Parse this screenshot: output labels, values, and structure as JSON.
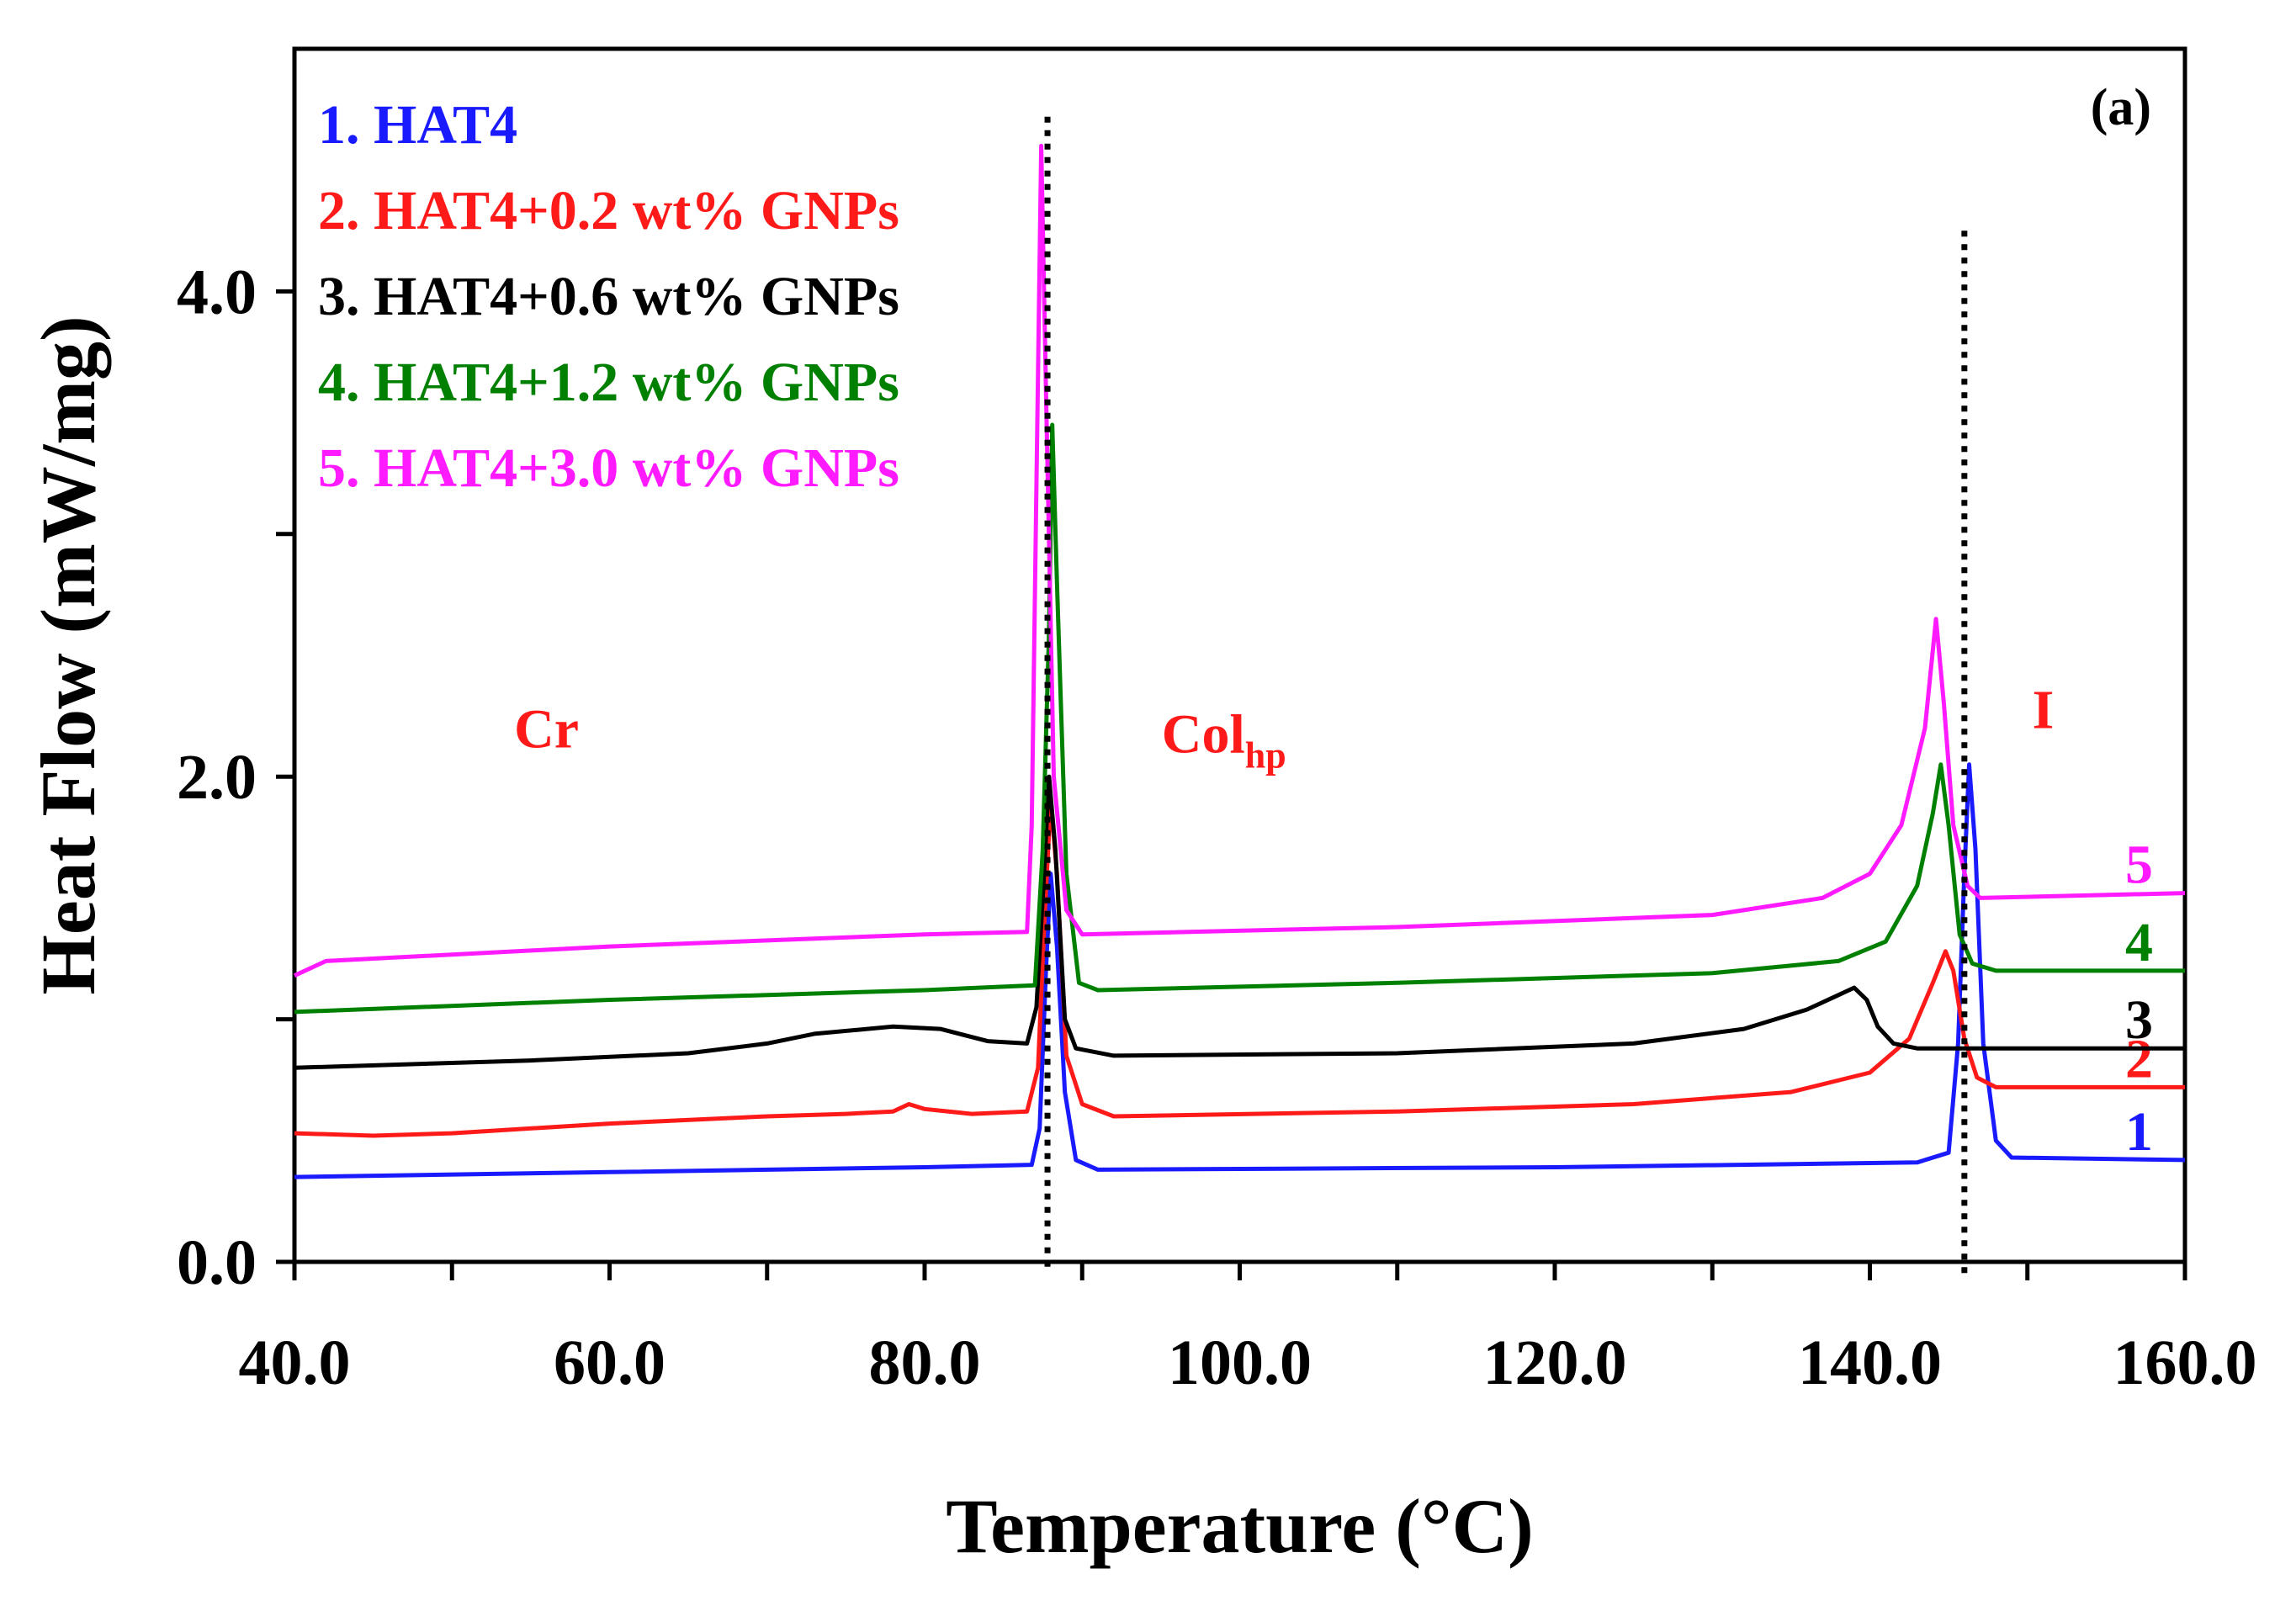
{
  "chart_data": {
    "type": "line",
    "title": "",
    "panel_label": "(a)",
    "xlabel": "Temperature (°C)",
    "ylabel": "Heat Flow (mW/mg)",
    "xlim": [
      40,
      160
    ],
    "ylim": [
      0,
      5.0
    ],
    "x_ticks": [
      40,
      60,
      80,
      100,
      120,
      140,
      160
    ],
    "x_tick_labels": [
      "40.0",
      "60.0",
      "80.0",
      "100.0",
      "120.0",
      "140.0",
      "160.0"
    ],
    "y_ticks": [
      0,
      2,
      4
    ],
    "y_tick_labels": [
      "0.0",
      "2.0",
      "4.0"
    ],
    "x_minor_step": 10,
    "y_minor_step": 1,
    "legend_position": "top-left",
    "series": [
      {
        "name": "1. HAT4",
        "end_label": "1",
        "color": "#1a1aff",
        "points": [
          [
            40,
            0.35
          ],
          [
            60,
            0.37
          ],
          [
            80,
            0.39
          ],
          [
            86.8,
            0.4
          ],
          [
            87.3,
            0.55
          ],
          [
            87.7,
            1.2
          ],
          [
            88.0,
            1.6
          ],
          [
            88.4,
            1.3
          ],
          [
            88.9,
            0.7
          ],
          [
            89.6,
            0.42
          ],
          [
            91,
            0.38
          ],
          [
            120,
            0.39
          ],
          [
            143,
            0.41
          ],
          [
            145.0,
            0.45
          ],
          [
            145.6,
            0.9
          ],
          [
            146.0,
            1.6
          ],
          [
            146.3,
            2.05
          ],
          [
            146.7,
            1.7
          ],
          [
            147.2,
            0.9
          ],
          [
            148.0,
            0.5
          ],
          [
            149,
            0.43
          ],
          [
            160,
            0.42
          ]
        ]
      },
      {
        "name": "2. HAT4+0.2 wt% GNPs",
        "end_label": "2",
        "color": "#ff1a1a",
        "points": [
          [
            40,
            0.53
          ],
          [
            45,
            0.52
          ],
          [
            50,
            0.53
          ],
          [
            60,
            0.57
          ],
          [
            70,
            0.6
          ],
          [
            75,
            0.61
          ],
          [
            78,
            0.62
          ],
          [
            79,
            0.65
          ],
          [
            80,
            0.63
          ],
          [
            83,
            0.61
          ],
          [
            86.5,
            0.62
          ],
          [
            87.2,
            0.8
          ],
          [
            87.6,
            1.4
          ],
          [
            88.0,
            1.9
          ],
          [
            88.4,
            1.6
          ],
          [
            89.0,
            0.85
          ],
          [
            90,
            0.65
          ],
          [
            92,
            0.6
          ],
          [
            110,
            0.62
          ],
          [
            125,
            0.65
          ],
          [
            135,
            0.7
          ],
          [
            140,
            0.78
          ],
          [
            142.5,
            0.92
          ],
          [
            144,
            1.15
          ],
          [
            144.8,
            1.28
          ],
          [
            145.3,
            1.2
          ],
          [
            146,
            0.92
          ],
          [
            146.8,
            0.76
          ],
          [
            148,
            0.72
          ],
          [
            160,
            0.72
          ]
        ]
      },
      {
        "name": "3. HAT4+0.6 wt% GNPs",
        "end_label": "3",
        "color": "#000000",
        "points": [
          [
            40,
            0.8
          ],
          [
            55,
            0.83
          ],
          [
            65,
            0.86
          ],
          [
            70,
            0.9
          ],
          [
            73,
            0.94
          ],
          [
            78,
            0.97
          ],
          [
            81,
            0.96
          ],
          [
            84,
            0.91
          ],
          [
            86.5,
            0.9
          ],
          [
            87.1,
            1.05
          ],
          [
            87.5,
            1.5
          ],
          [
            87.9,
            2.0
          ],
          [
            88.3,
            1.7
          ],
          [
            88.9,
            1.0
          ],
          [
            89.6,
            0.88
          ],
          [
            92,
            0.85
          ],
          [
            110,
            0.86
          ],
          [
            125,
            0.9
          ],
          [
            132,
            0.96
          ],
          [
            136,
            1.04
          ],
          [
            138,
            1.1
          ],
          [
            139,
            1.13
          ],
          [
            139.8,
            1.08
          ],
          [
            140.5,
            0.97
          ],
          [
            141.5,
            0.9
          ],
          [
            143,
            0.88
          ],
          [
            160,
            0.88
          ]
        ]
      },
      {
        "name": "4. HAT4+1.2 wt% GNPs",
        "end_label": "4",
        "color": "#008000",
        "points": [
          [
            40,
            1.03
          ],
          [
            60,
            1.08
          ],
          [
            80,
            1.12
          ],
          [
            87.0,
            1.14
          ],
          [
            87.5,
            1.7
          ],
          [
            87.9,
            2.6
          ],
          [
            88.1,
            3.45
          ],
          [
            88.4,
            2.8
          ],
          [
            89.0,
            1.6
          ],
          [
            89.8,
            1.15
          ],
          [
            91,
            1.12
          ],
          [
            110,
            1.15
          ],
          [
            130,
            1.19
          ],
          [
            138,
            1.24
          ],
          [
            141,
            1.32
          ],
          [
            143,
            1.55
          ],
          [
            144.0,
            1.85
          ],
          [
            144.5,
            2.05
          ],
          [
            145.0,
            1.8
          ],
          [
            145.7,
            1.35
          ],
          [
            146.5,
            1.23
          ],
          [
            148,
            1.2
          ],
          [
            160,
            1.2
          ]
        ]
      },
      {
        "name": "5. HAT4+3.0 wt% GNPs",
        "end_label": "5",
        "color": "#ff1aff",
        "points": [
          [
            40,
            1.18
          ],
          [
            42,
            1.24
          ],
          [
            60,
            1.3
          ],
          [
            80,
            1.35
          ],
          [
            86.5,
            1.36
          ],
          [
            86.8,
            1.8
          ],
          [
            87.1,
            3.2
          ],
          [
            87.4,
            4.6
          ],
          [
            87.7,
            3.6
          ],
          [
            88.2,
            2.0
          ],
          [
            89,
            1.45
          ],
          [
            90,
            1.35
          ],
          [
            110,
            1.38
          ],
          [
            130,
            1.43
          ],
          [
            137,
            1.5
          ],
          [
            140,
            1.6
          ],
          [
            142,
            1.8
          ],
          [
            143.5,
            2.2
          ],
          [
            144.2,
            2.65
          ],
          [
            144.7,
            2.3
          ],
          [
            145.3,
            1.8
          ],
          [
            146.2,
            1.55
          ],
          [
            147,
            1.5
          ],
          [
            160,
            1.52
          ]
        ]
      }
    ],
    "vlines": [
      {
        "x": 87.8,
        "y_from": -0.05,
        "y_to": 4.72
      },
      {
        "x": 146.0,
        "y_from": -0.05,
        "y_to": 4.25
      }
    ],
    "phase_annotations": [
      {
        "text": "Cr",
        "x": 56,
        "y": 2.12
      },
      {
        "text": "Col",
        "subscript": "hp",
        "x": 99,
        "y": 2.1
      },
      {
        "text": "I",
        "x": 151,
        "y": 2.2
      }
    ]
  }
}
